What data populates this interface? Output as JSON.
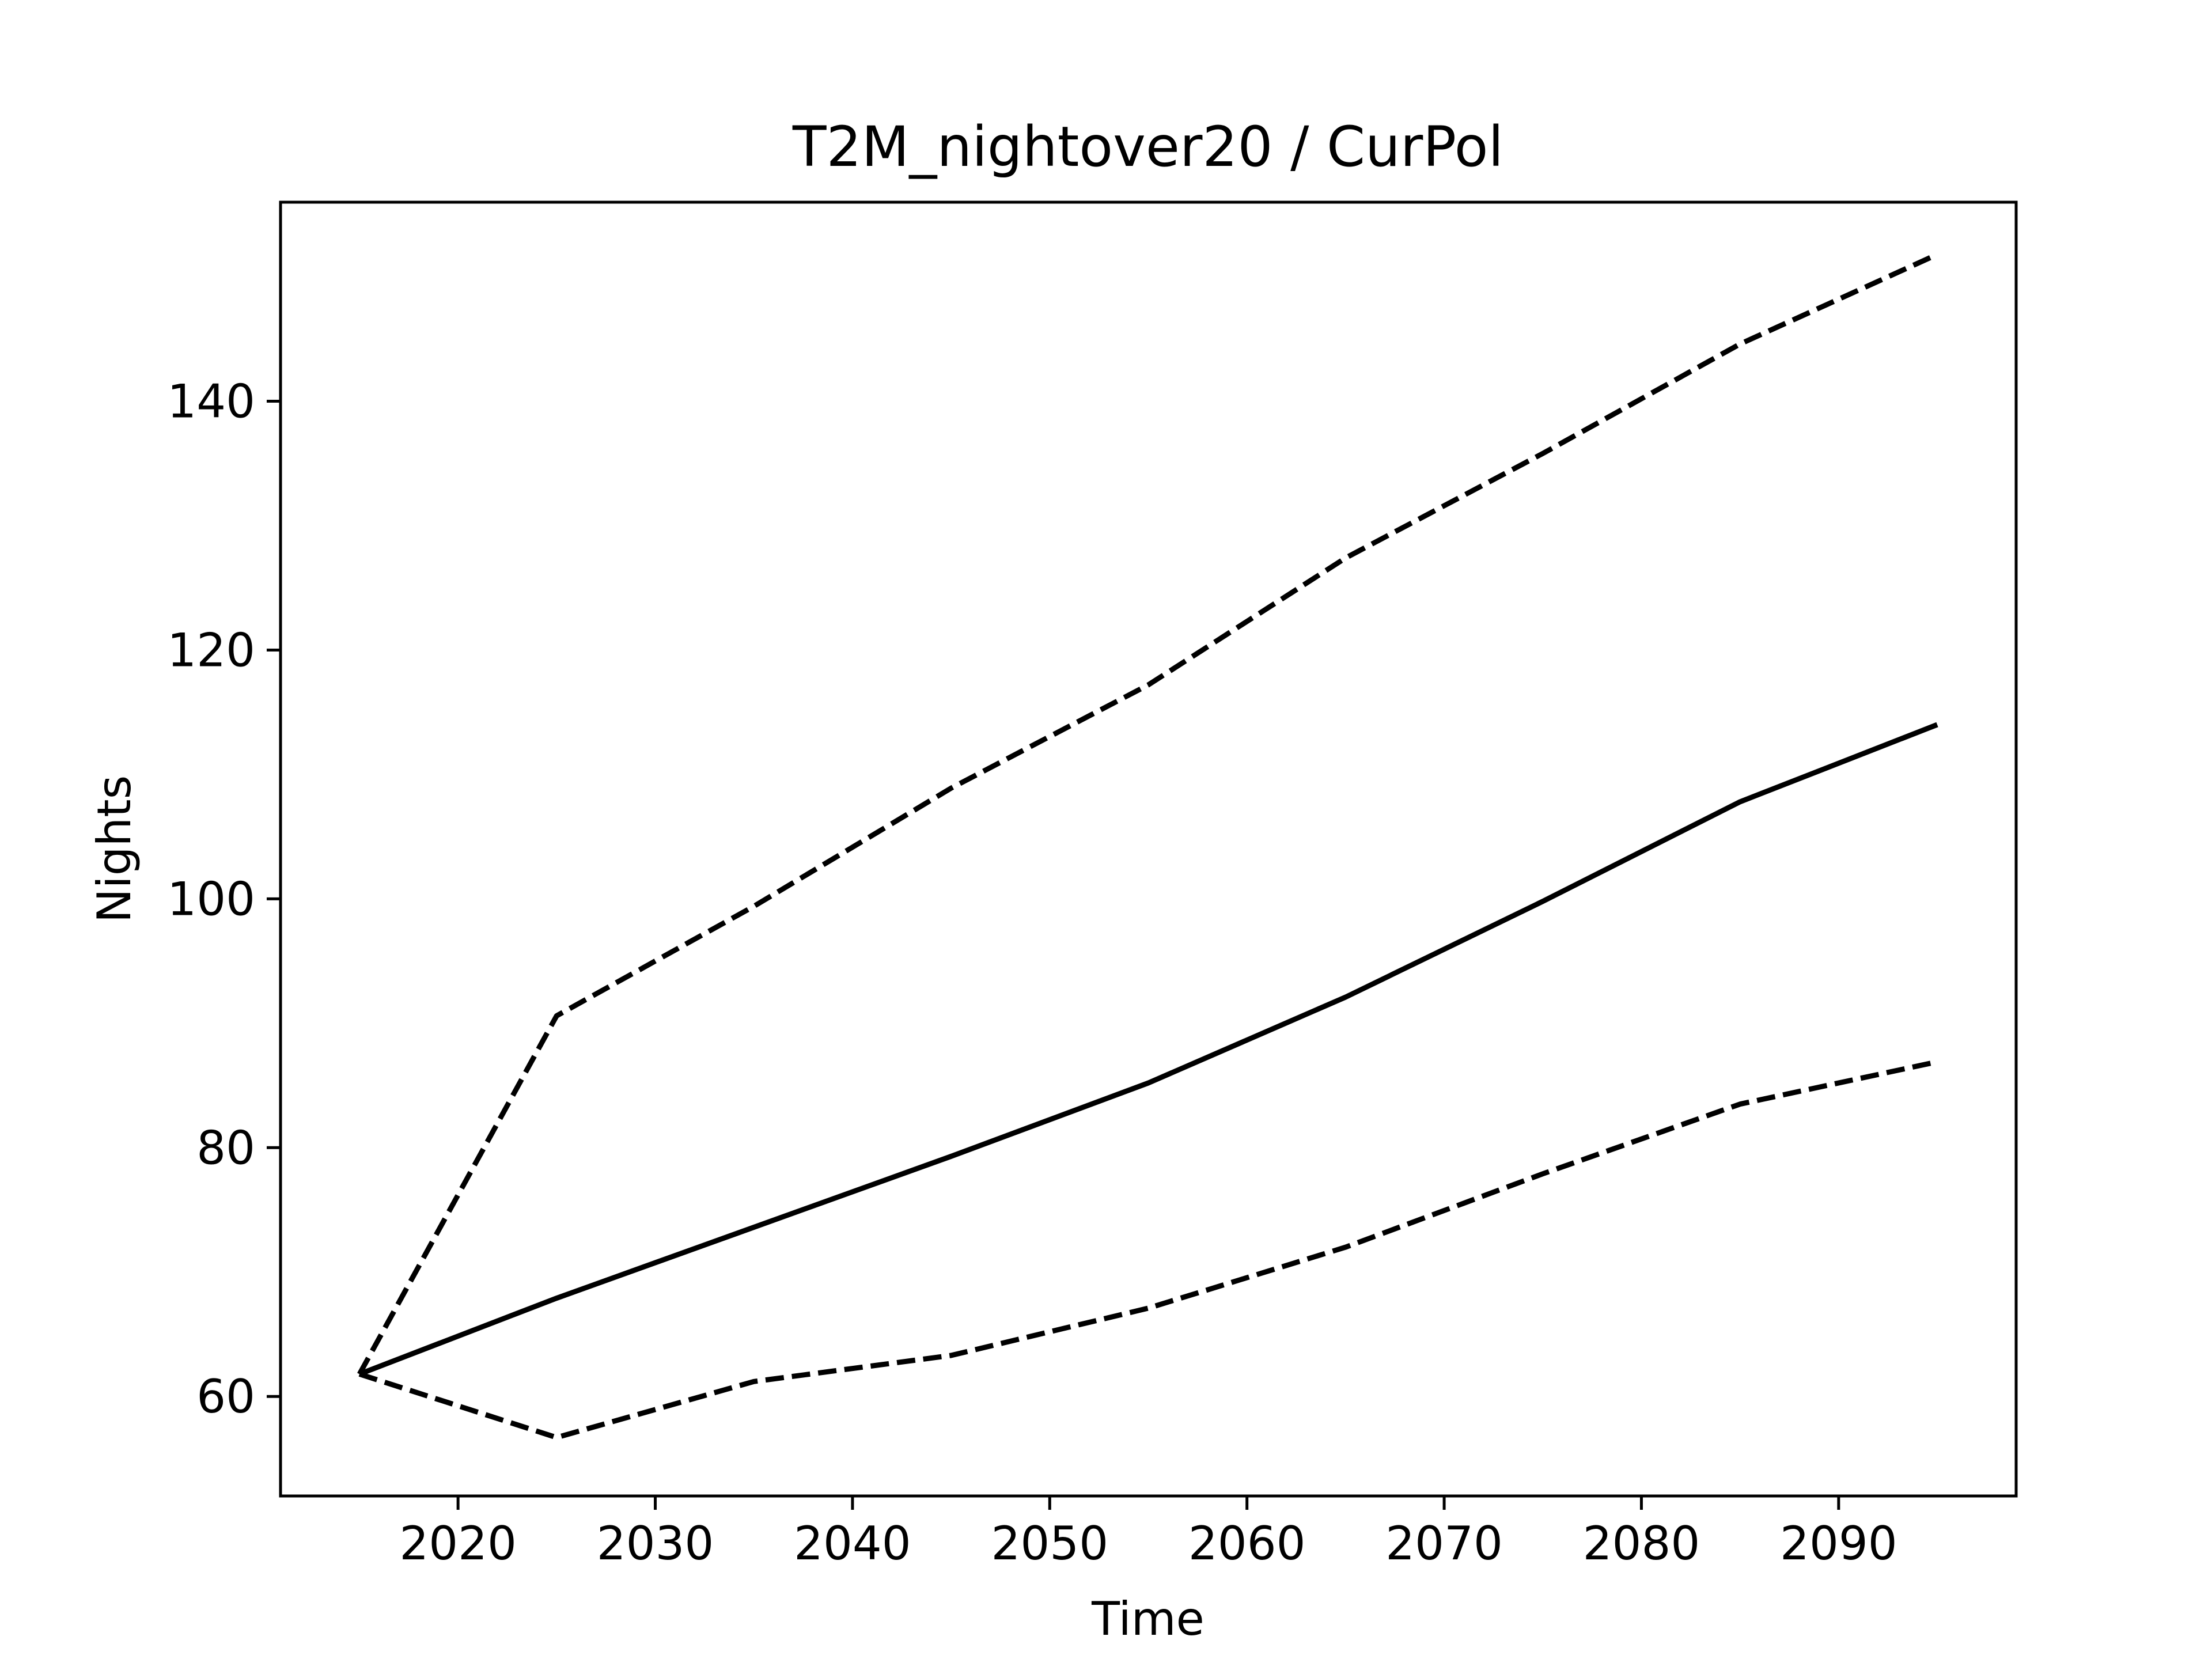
{
  "chart_data": {
    "type": "line",
    "title": "T2M_nightover20 / CurPol",
    "xlabel": "Time",
    "ylabel": "Nights",
    "xlim": [
      2011,
      2099
    ],
    "ylim": [
      52,
      156
    ],
    "grid": false,
    "x_ticks": [
      2020,
      2030,
      2040,
      2050,
      2060,
      2070,
      2080,
      2090
    ],
    "y_ticks": [
      60,
      80,
      100,
      120,
      140
    ],
    "x": [
      2015,
      2025,
      2035,
      2045,
      2055,
      2065,
      2075,
      2085,
      2095
    ],
    "series": [
      {
        "style": "solid",
        "color": "#000000",
        "values": [
          61.8,
          67.9,
          73.6,
          79.3,
          85.2,
          92.1,
          99.8,
          107.8,
          114.0
        ]
      },
      {
        "style": "dashed",
        "color": "#000000",
        "values": [
          61.8,
          90.6,
          99.4,
          108.9,
          117.2,
          127.4,
          135.8,
          144.6,
          151.8
        ]
      },
      {
        "style": "dashed",
        "color": "#000000",
        "values": [
          61.8,
          56.7,
          61.2,
          63.3,
          67.1,
          72.0,
          77.9,
          83.5,
          86.9
        ]
      }
    ]
  }
}
